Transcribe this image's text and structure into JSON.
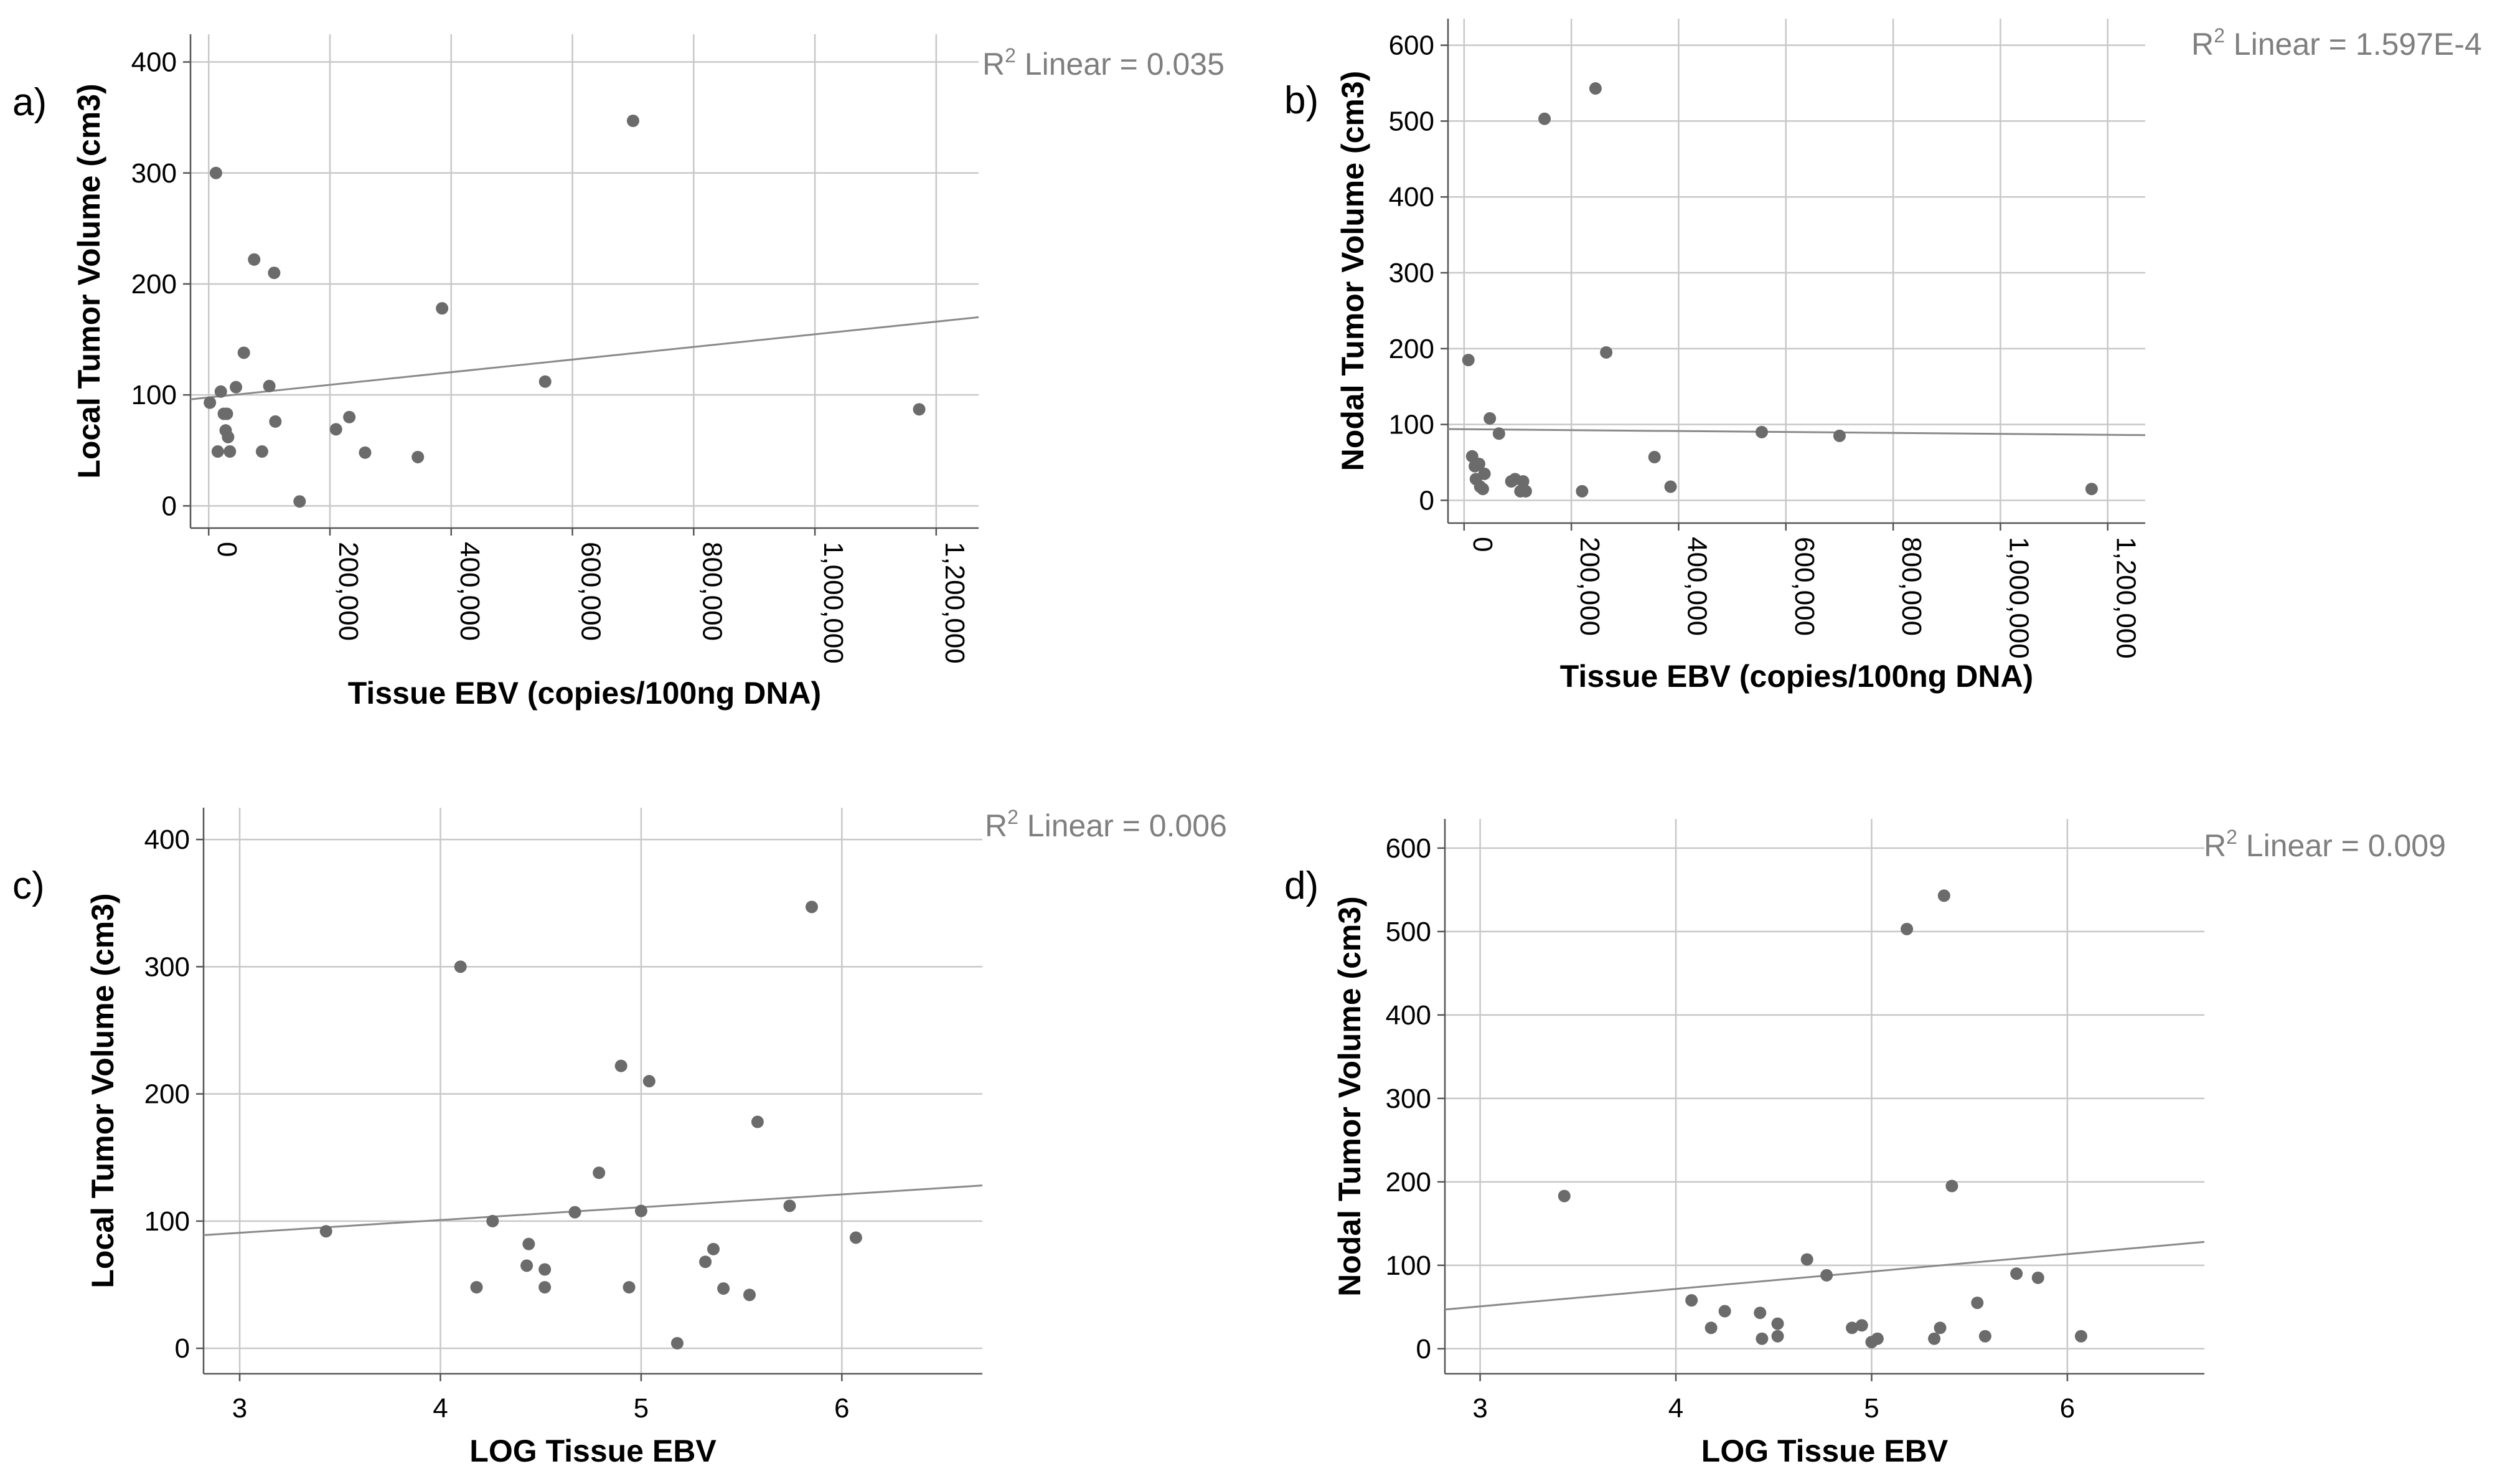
{
  "chart_data": [
    {
      "id": "a",
      "type": "scatter",
      "panel_label": "a)",
      "xlabel": "Tissue EBV (copies/100ng DNA)",
      "ylabel": "Local Tumor Volume (cm3)",
      "xlim": [
        -30000,
        1270000
      ],
      "ylim": [
        -20,
        425
      ],
      "xticks": [
        0,
        200000,
        400000,
        600000,
        800000,
        1000000,
        1200000
      ],
      "xtick_labels": [
        "0",
        "200,000",
        "400,000",
        "600,000",
        "800,000",
        "1,000,000",
        "1,200,000"
      ],
      "yticks": [
        0,
        100,
        200,
        300,
        400
      ],
      "ytick_labels": [
        "0",
        "100",
        "200",
        "300",
        "400"
      ],
      "x_tick_rotation": 90,
      "fit_prefix": "R",
      "fit_sup": "2",
      "fit_suffix": " Linear = 0.035",
      "fit_line": [
        [
          -30000,
          96
        ],
        [
          1270000,
          170
        ]
      ],
      "points": [
        [
          2000,
          93
        ],
        [
          12000,
          300
        ],
        [
          15000,
          49
        ],
        [
          20000,
          103
        ],
        [
          25000,
          83
        ],
        [
          28000,
          68
        ],
        [
          30000,
          83
        ],
        [
          32000,
          62
        ],
        [
          35000,
          49
        ],
        [
          45000,
          107
        ],
        [
          58000,
          138
        ],
        [
          75000,
          222
        ],
        [
          88000,
          49
        ],
        [
          100000,
          108
        ],
        [
          108000,
          210
        ],
        [
          110000,
          76
        ],
        [
          150000,
          4
        ],
        [
          210000,
          69
        ],
        [
          232000,
          80
        ],
        [
          258000,
          48
        ],
        [
          345000,
          44
        ],
        [
          385000,
          178
        ],
        [
          555000,
          112
        ],
        [
          700000,
          347
        ],
        [
          1172000,
          87
        ]
      ]
    },
    {
      "id": "b",
      "type": "scatter",
      "panel_label": "b)",
      "xlabel": "Tissue EBV (copies/100ng DNA)",
      "ylabel": "Nodal Tumor Volume (cm3)",
      "xlim": [
        -30000,
        1270000
      ],
      "ylim": [
        -30,
        635
      ],
      "xticks": [
        0,
        200000,
        400000,
        600000,
        800000,
        1000000,
        1200000
      ],
      "xtick_labels": [
        "0",
        "200,000",
        "400,000",
        "600,000",
        "800,000",
        "1,000,000",
        "1,200,000"
      ],
      "yticks": [
        0,
        100,
        200,
        300,
        400,
        500,
        600
      ],
      "ytick_labels": [
        "0",
        "100",
        "200",
        "300",
        "400",
        "500",
        "600"
      ],
      "x_tick_rotation": 90,
      "fit_prefix": "R",
      "fit_sup": "2",
      "fit_suffix": " Linear = 1.597E-4",
      "fit_line": [
        [
          -30000,
          94
        ],
        [
          1270000,
          86
        ]
      ],
      "points": [
        [
          8000,
          185
        ],
        [
          15000,
          58
        ],
        [
          20000,
          45
        ],
        [
          22000,
          28
        ],
        [
          28000,
          48
        ],
        [
          30000,
          18
        ],
        [
          35000,
          15
        ],
        [
          38000,
          35
        ],
        [
          48000,
          108
        ],
        [
          65000,
          88
        ],
        [
          88000,
          25
        ],
        [
          95000,
          28
        ],
        [
          105000,
          12
        ],
        [
          110000,
          25
        ],
        [
          115000,
          12
        ],
        [
          150000,
          503
        ],
        [
          220000,
          12
        ],
        [
          245000,
          543
        ],
        [
          265000,
          195
        ],
        [
          355000,
          57
        ],
        [
          385000,
          18
        ],
        [
          555000,
          90
        ],
        [
          700000,
          85
        ],
        [
          1170000,
          15
        ]
      ]
    },
    {
      "id": "c",
      "type": "scatter",
      "panel_label": "c)",
      "xlabel": "LOG Tissue EBV",
      "ylabel": "Local Tumor Volume (cm3)",
      "xlim": [
        2.82,
        6.7
      ],
      "ylim": [
        -20,
        425
      ],
      "xticks": [
        3,
        4,
        5,
        6
      ],
      "xtick_labels": [
        "3",
        "4",
        "5",
        "6"
      ],
      "yticks": [
        0,
        100,
        200,
        300,
        400
      ],
      "ytick_labels": [
        "0",
        "100",
        "200",
        "300",
        "400"
      ],
      "x_tick_rotation": 0,
      "fit_prefix": "R",
      "fit_sup": "2",
      "fit_suffix": " Linear = 0.006",
      "fit_line": [
        [
          2.82,
          89
        ],
        [
          6.7,
          128
        ]
      ],
      "points": [
        [
          3.43,
          92
        ],
        [
          4.1,
          300
        ],
        [
          4.18,
          48
        ],
        [
          4.26,
          100
        ],
        [
          4.43,
          65
        ],
        [
          4.44,
          82
        ],
        [
          4.52,
          48
        ],
        [
          4.52,
          62
        ],
        [
          4.67,
          107
        ],
        [
          4.79,
          138
        ],
        [
          4.9,
          222
        ],
        [
          4.94,
          48
        ],
        [
          5.0,
          108
        ],
        [
          5.04,
          210
        ],
        [
          5.18,
          4
        ],
        [
          5.32,
          68
        ],
        [
          5.36,
          78
        ],
        [
          5.41,
          47
        ],
        [
          5.54,
          42
        ],
        [
          5.58,
          178
        ],
        [
          5.74,
          112
        ],
        [
          5.85,
          347
        ],
        [
          6.07,
          87
        ]
      ]
    },
    {
      "id": "d",
      "type": "scatter",
      "panel_label": "d)",
      "xlabel": "LOG Tissue EBV",
      "ylabel": "Nodal Tumor Volume (cm3)",
      "xlim": [
        2.82,
        6.7
      ],
      "ylim": [
        -30,
        635
      ],
      "xticks": [
        3,
        4,
        5,
        6
      ],
      "xtick_labels": [
        "3",
        "4",
        "5",
        "6"
      ],
      "yticks": [
        0,
        100,
        200,
        300,
        400,
        500,
        600
      ],
      "ytick_labels": [
        "0",
        "100",
        "200",
        "300",
        "400",
        "500",
        "600"
      ],
      "x_tick_rotation": 0,
      "fit_prefix": "R",
      "fit_sup": "2",
      "fit_suffix": " Linear = 0.009",
      "fit_line": [
        [
          2.82,
          47
        ],
        [
          6.7,
          128
        ]
      ],
      "points": [
        [
          3.43,
          183
        ],
        [
          4.08,
          58
        ],
        [
          4.18,
          25
        ],
        [
          4.25,
          45
        ],
        [
          4.43,
          43
        ],
        [
          4.44,
          12
        ],
        [
          4.52,
          30
        ],
        [
          4.52,
          15
        ],
        [
          4.67,
          107
        ],
        [
          4.77,
          88
        ],
        [
          4.9,
          25
        ],
        [
          4.95,
          28
        ],
        [
          5.0,
          8
        ],
        [
          5.03,
          12
        ],
        [
          5.18,
          503
        ],
        [
          5.32,
          12
        ],
        [
          5.35,
          25
        ],
        [
          5.37,
          543
        ],
        [
          5.41,
          195
        ],
        [
          5.54,
          55
        ],
        [
          5.58,
          15
        ],
        [
          5.74,
          90
        ],
        [
          5.85,
          85
        ],
        [
          6.07,
          15
        ]
      ]
    }
  ]
}
